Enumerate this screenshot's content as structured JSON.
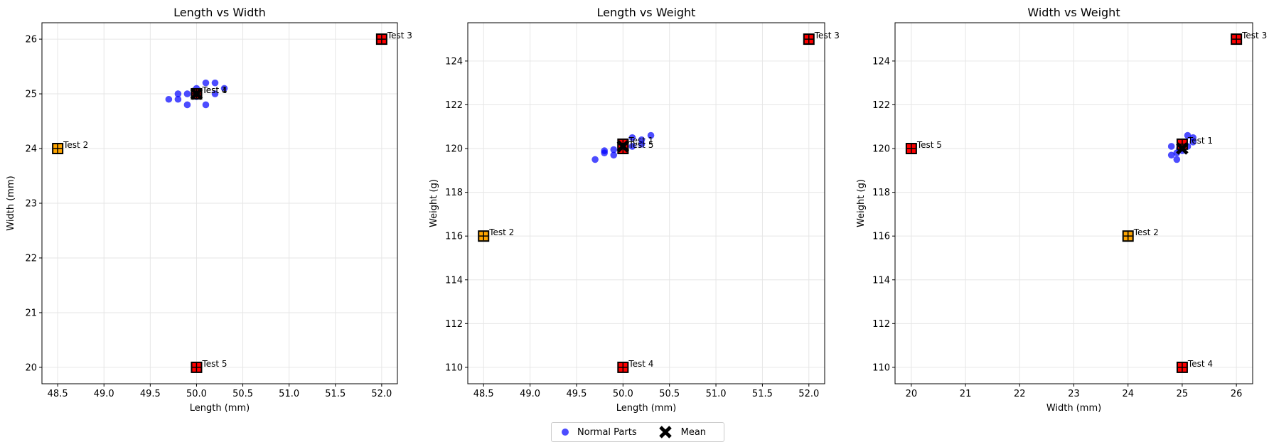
{
  "colors": {
    "normal": "#0000ff",
    "mean": "#000000",
    "test_red": "#ff0000",
    "test_orange": "#ffa500",
    "grid": "#e6e6e6"
  },
  "legend": {
    "items": [
      {
        "label": "Normal Parts",
        "marker": "circle",
        "color": "#0000ff"
      },
      {
        "label": "Mean",
        "marker": "x-bold",
        "color": "#000000"
      }
    ],
    "placement": "bottom-center"
  },
  "chart_data": [
    {
      "type": "scatter",
      "title": "Length vs Width",
      "xlabel": "Length (mm)",
      "ylabel": "Width (mm)",
      "xlim": [
        48.33,
        52.17
      ],
      "ylim": [
        19.7,
        26.3
      ],
      "xticks": [
        "48.5",
        "49.0",
        "49.5",
        "50.0",
        "50.5",
        "51.0",
        "51.5",
        "52.0"
      ],
      "yticks": [
        "20",
        "21",
        "22",
        "23",
        "24",
        "25",
        "26"
      ],
      "grid": true,
      "normal_points": [
        [
          49.7,
          24.9
        ],
        [
          49.8,
          25.0
        ],
        [
          49.8,
          24.9
        ],
        [
          49.9,
          25.0
        ],
        [
          49.9,
          24.8
        ],
        [
          50.0,
          25.1
        ],
        [
          50.1,
          25.2
        ],
        [
          50.2,
          25.2
        ],
        [
          50.2,
          25.0
        ],
        [
          50.3,
          25.1
        ],
        [
          50.1,
          24.8
        ],
        [
          50.0,
          24.95
        ]
      ],
      "mean": [
        50.0,
        25.0
      ],
      "tests": [
        {
          "label": "Test 1",
          "x": 50.0,
          "y": 25.0,
          "color": "#ff0000"
        },
        {
          "label": "Test 2",
          "x": 48.5,
          "y": 24.0,
          "color": "#ffa500"
        },
        {
          "label": "Test 3",
          "x": 52.0,
          "y": 26.0,
          "color": "#ff0000"
        },
        {
          "label": "Test 4",
          "x": 50.0,
          "y": 25.0,
          "color": "#ff0000"
        },
        {
          "label": "Test 5",
          "x": 50.0,
          "y": 20.0,
          "color": "#ff0000"
        }
      ]
    },
    {
      "type": "scatter",
      "title": "Length vs Weight",
      "xlabel": "Length (mm)",
      "ylabel": "Weight (g)",
      "xlim": [
        48.33,
        52.17
      ],
      "ylim": [
        109.25,
        125.75
      ],
      "xticks": [
        "48.5",
        "49.0",
        "49.5",
        "50.0",
        "50.5",
        "51.0",
        "51.5",
        "52.0"
      ],
      "yticks": [
        "110",
        "112",
        "114",
        "116",
        "118",
        "120",
        "122",
        "124"
      ],
      "grid": true,
      "normal_points": [
        [
          49.7,
          119.5
        ],
        [
          49.8,
          119.8
        ],
        [
          49.8,
          119.9
        ],
        [
          49.9,
          119.7
        ],
        [
          49.9,
          119.95
        ],
        [
          50.0,
          120.0
        ],
        [
          50.1,
          120.5
        ],
        [
          50.2,
          120.4
        ],
        [
          50.2,
          120.2
        ],
        [
          50.3,
          120.6
        ],
        [
          50.1,
          120.1
        ],
        [
          50.0,
          120.2
        ]
      ],
      "mean": [
        50.0,
        120.1
      ],
      "tests": [
        {
          "label": "Test 1",
          "x": 50.0,
          "y": 120.2,
          "color": "#ff0000"
        },
        {
          "label": "Test 2",
          "x": 48.5,
          "y": 116.0,
          "color": "#ffa500"
        },
        {
          "label": "Test 3",
          "x": 52.0,
          "y": 125.0,
          "color": "#ff0000"
        },
        {
          "label": "Test 4",
          "x": 50.0,
          "y": 110.0,
          "color": "#ff0000"
        },
        {
          "label": "Test 5",
          "x": 50.0,
          "y": 120.0,
          "color": "#ff0000"
        }
      ]
    },
    {
      "type": "scatter",
      "title": "Width vs Weight",
      "xlabel": "Width (mm)",
      "ylabel": "Weight (g)",
      "xlim": [
        19.7,
        26.3
      ],
      "ylim": [
        109.25,
        125.75
      ],
      "xticks": [
        "20",
        "21",
        "22",
        "23",
        "24",
        "25",
        "26"
      ],
      "yticks": [
        "110",
        "112",
        "114",
        "116",
        "118",
        "120",
        "122",
        "124"
      ],
      "grid": true,
      "normal_points": [
        [
          24.8,
          120.1
        ],
        [
          24.8,
          119.7
        ],
        [
          24.9,
          119.5
        ],
        [
          24.9,
          119.8
        ],
        [
          25.0,
          120.0
        ],
        [
          25.1,
          120.6
        ],
        [
          25.2,
          120.5
        ],
        [
          25.2,
          120.3
        ],
        [
          25.1,
          120.1
        ],
        [
          25.0,
          119.9
        ],
        [
          24.95,
          120.0
        ]
      ],
      "mean": [
        25.0,
        120.0
      ],
      "tests": [
        {
          "label": "Test 1",
          "x": 25.0,
          "y": 120.2,
          "color": "#ff0000"
        },
        {
          "label": "Test 2",
          "x": 24.0,
          "y": 116.0,
          "color": "#ffa500"
        },
        {
          "label": "Test 3",
          "x": 26.0,
          "y": 125.0,
          "color": "#ff0000"
        },
        {
          "label": "Test 4",
          "x": 25.0,
          "y": 110.0,
          "color": "#ff0000"
        },
        {
          "label": "Test 5",
          "x": 20.0,
          "y": 120.0,
          "color": "#ff0000"
        }
      ]
    }
  ]
}
